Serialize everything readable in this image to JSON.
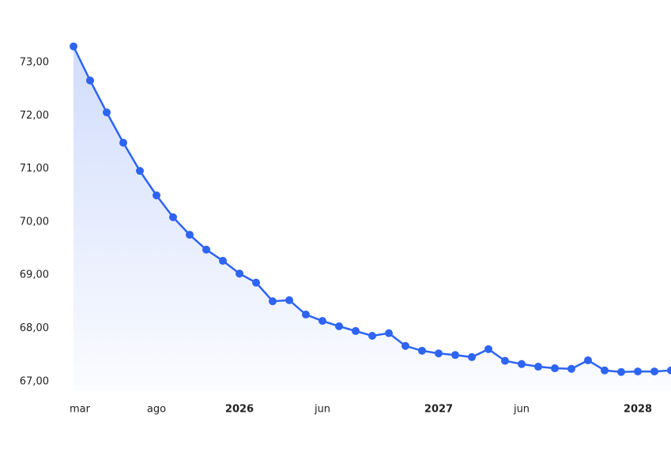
{
  "chart_data": {
    "type": "area",
    "categories": [
      "mar",
      null,
      null,
      null,
      null,
      "ago",
      null,
      null,
      null,
      null,
      "2026",
      null,
      null,
      null,
      null,
      "jun",
      null,
      null,
      null,
      null,
      null,
      null,
      "2027",
      null,
      null,
      null,
      null,
      "jun",
      null,
      null,
      null,
      null,
      null,
      null,
      "2028",
      null,
      null
    ],
    "series": [
      {
        "color": "#2e64f2",
        "values": [
          73.3,
          72.66,
          72.06,
          71.49,
          70.96,
          70.5,
          70.09,
          69.76,
          69.48,
          69.27,
          69.03,
          68.86,
          68.51,
          68.53,
          68.26,
          68.14,
          68.04,
          67.95,
          67.86,
          67.91,
          67.67,
          67.58,
          67.53,
          67.5,
          67.46,
          67.61,
          67.39,
          67.33,
          67.28,
          67.25,
          67.24,
          67.4,
          67.21,
          67.18,
          67.19,
          67.19,
          67.21
        ]
      }
    ],
    "ylim": [
      66.82,
      73.43
    ],
    "yticks": [
      {
        "value": 67,
        "label": "67,00"
      },
      {
        "value": 68,
        "label": "68,00"
      },
      {
        "value": 69,
        "label": "69,00"
      },
      {
        "value": 70,
        "label": "70,00"
      },
      {
        "value": 71,
        "label": "71,00"
      },
      {
        "value": 72,
        "label": "72,00"
      },
      {
        "value": 73,
        "label": "73,00"
      }
    ],
    "grid": false
  }
}
